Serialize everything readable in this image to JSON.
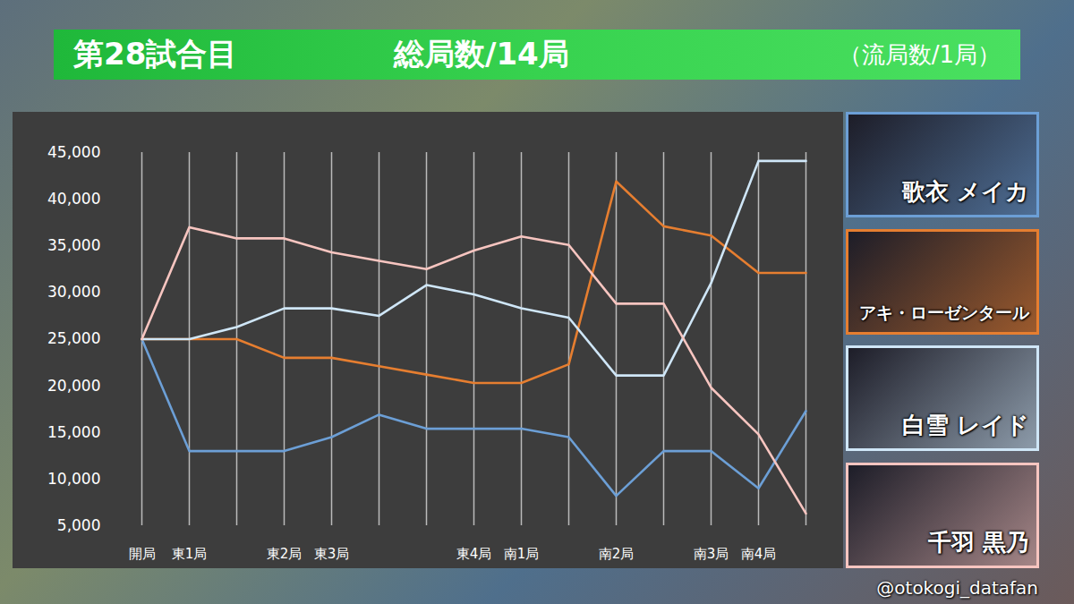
{
  "chart_data": {
    "type": "line",
    "title": "第28試合目",
    "subtitle": "総局数/14局",
    "annotations": [
      "（流局数/1局）"
    ],
    "caption": "@otokogi_datafan",
    "categories": [
      "開局",
      "東1局",
      null,
      "東2局",
      "東3局",
      null,
      null,
      "東4局",
      "南1局",
      null,
      "南2局",
      null,
      "南3局",
      "南4局",
      null
    ],
    "series": [
      {
        "name": "歌衣 メイカ",
        "color": "#6c9fd6",
        "values": [
          25000,
          13000,
          13000,
          13000,
          14500,
          16900,
          15400,
          15400,
          15400,
          14500,
          8200,
          13000,
          13000,
          9000,
          17300
        ]
      },
      {
        "name": "アキ・ローゼンタール",
        "color": "#e67e30",
        "values": [
          25000,
          25000,
          25000,
          23000,
          23000,
          22100,
          21200,
          20300,
          20300,
          22300,
          41900,
          37100,
          36100,
          32100,
          32100
        ]
      },
      {
        "name": "白雪 レイド",
        "color": "#cfe6f7",
        "values": [
          25000,
          25000,
          26300,
          28300,
          28300,
          27500,
          30800,
          29800,
          28300,
          27300,
          21100,
          21100,
          31000,
          44100,
          44100
        ]
      },
      {
        "name": "千羽 黒乃",
        "color": "#f7c5c0",
        "values": [
          25000,
          37000,
          35800,
          35800,
          34300,
          33400,
          32500,
          34500,
          36000,
          35100,
          28800,
          28800,
          19800,
          14800,
          6300
        ]
      }
    ],
    "ylim": [
      5000,
      45000
    ],
    "yticks": [
      {
        "value": 5000,
        "label": "5,000"
      },
      {
        "value": 10000,
        "label": "10,000"
      },
      {
        "value": 15000,
        "label": "15,000"
      },
      {
        "value": 20000,
        "label": "20,000"
      },
      {
        "value": 25000,
        "label": "25,000"
      },
      {
        "value": 30000,
        "label": "30,000"
      },
      {
        "value": 35000,
        "label": "35,000"
      },
      {
        "value": 40000,
        "label": "40,000"
      },
      {
        "value": 45000,
        "label": "45,000"
      }
    ],
    "grid": true,
    "legend": "right"
  }
}
